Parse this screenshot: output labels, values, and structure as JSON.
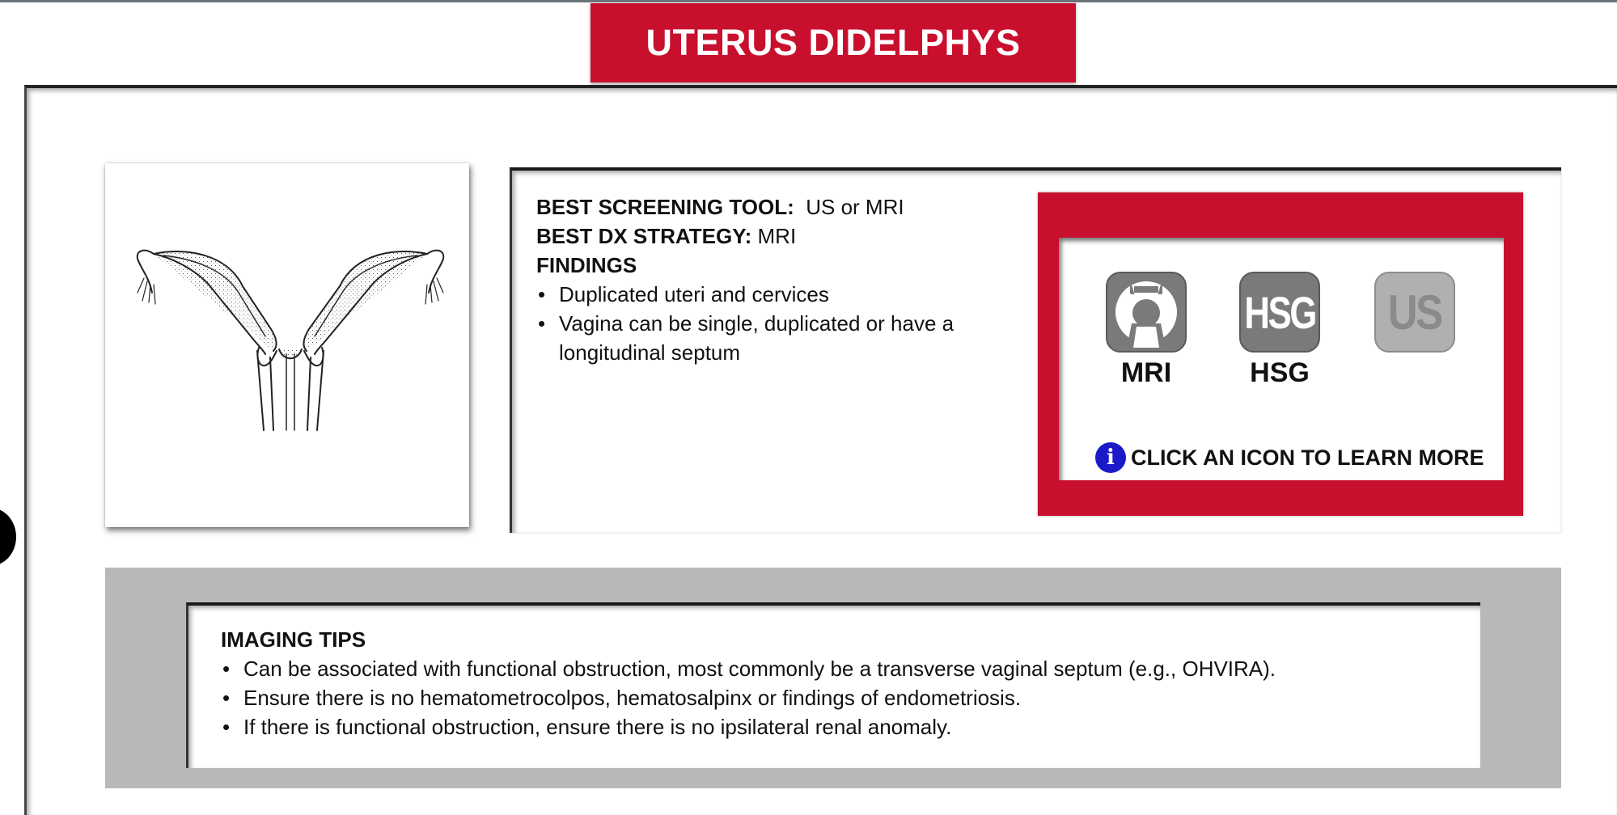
{
  "header": {
    "title": "UTERUS DIDELPHYS"
  },
  "illustration": {
    "subject": "uterus didelphys line drawing"
  },
  "summary": {
    "screening_label": "BEST SCREENING TOOL:",
    "screening_value": "US or MRI",
    "dx_label": "BEST DX STRATEGY:",
    "dx_value": "MRI",
    "findings_heading": "FINDINGS",
    "findings": [
      "Duplicated uteri and cervices",
      "Vagina can be single, duplicated or have a longitudinal septum"
    ]
  },
  "modalities": {
    "items": [
      {
        "label": "MRI",
        "icon": "mri-magnet-icon",
        "color": "#7a7a7a",
        "enabled": true
      },
      {
        "label": "HSG",
        "icon_text": "HSG",
        "color": "#7a7a7a",
        "enabled": true
      },
      {
        "icon_text": "US",
        "color": "#b0b0b0",
        "enabled": false
      }
    ],
    "hint": "CLICK AN ICON TO LEARN MORE",
    "hint_icon": "info-icon"
  },
  "tips": {
    "heading": "IMAGING TIPS",
    "items": [
      "Can be associated with functional obstruction, most commonly be a transverse vaginal septum (e.g., OHVIRA).",
      "Ensure there is no hematometrocolpos, hematosalpinx or findings of endometriosis.",
      "If there is functional obstruction, ensure there is no ipsilateral renal anomaly."
    ]
  },
  "colors": {
    "accent_red": "#c8102e",
    "tips_gray": "#b8b8b8",
    "info_blue": "#1a1ac8"
  }
}
